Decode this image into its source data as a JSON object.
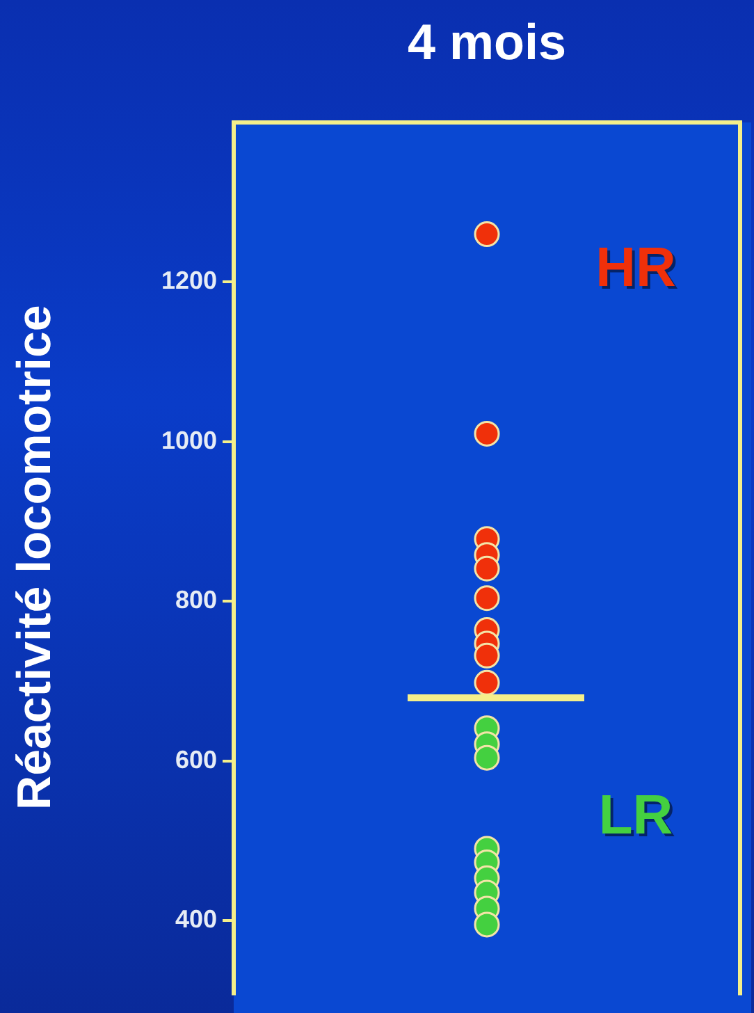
{
  "chart_data": {
    "type": "scatter",
    "categories": [
      "4 mois"
    ],
    "ylabel": "Réactivité locomotrice",
    "ylim": [
      310,
      1400
    ],
    "yticks": [
      400,
      600,
      800,
      1000,
      1200
    ],
    "grid": false,
    "legend": "right",
    "marker": "circle",
    "series": [
      {
        "name": "HR",
        "color": "#f0300a",
        "x": [
          "4 mois",
          "4 mois",
          "4 mois",
          "4 mois",
          "4 mois",
          "4 mois",
          "4 mois",
          "4 mois",
          "4 mois",
          "4 mois"
        ],
        "values": [
          1260,
          1010,
          878,
          858,
          841,
          804,
          764,
          747,
          732,
          698
        ]
      },
      {
        "name": "LR",
        "color": "#44d040",
        "x": [
          "4 mois",
          "4 mois",
          "4 mois",
          "4 mois",
          "4 mois",
          "4 mois",
          "4 mois",
          "4 mois",
          "4 mois"
        ],
        "values": [
          641,
          621,
          604,
          490,
          473,
          453,
          435,
          415,
          395
        ]
      }
    ],
    "ref_lines": [
      {
        "axis": "y",
        "value": 679,
        "color": "#f5ef8a"
      }
    ]
  }
}
